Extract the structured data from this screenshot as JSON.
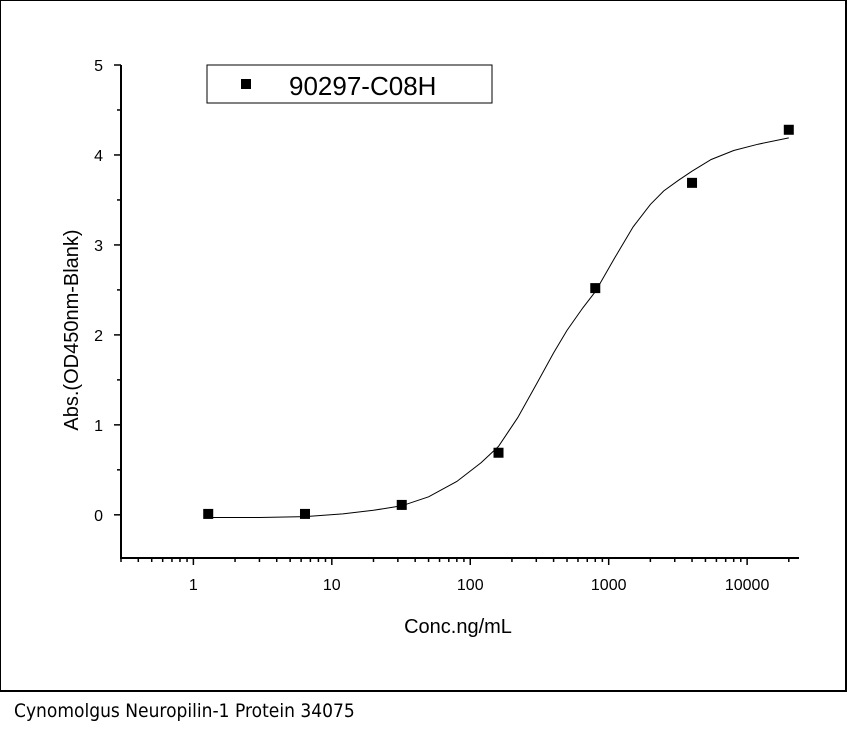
{
  "caption": "Cynomolgus Neuropilin-1 Protein 34075",
  "chart_data": {
    "type": "scatter",
    "title": "",
    "xlabel": "Conc.ng/mL",
    "ylabel": "Abs.(OD450nm-Blank)",
    "x_scale": "log",
    "xlim": [
      0.3,
      23700
    ],
    "ylim": [
      -0.48,
      5
    ],
    "x_ticks": [
      1,
      10,
      100,
      1000,
      10000
    ],
    "x_tick_labels": [
      "1",
      "10",
      "100",
      "1000",
      "10000"
    ],
    "y_ticks": [
      0,
      1,
      2,
      3,
      4,
      5
    ],
    "y_tick_labels": [
      "0",
      "1",
      "2",
      "3",
      "4",
      "5"
    ],
    "grid": false,
    "legend_position": "top-left",
    "series": [
      {
        "name": "90297-C08H",
        "marker": "square",
        "color": "#000000",
        "x": [
          1.28,
          6.4,
          32,
          160,
          800,
          4000,
          20000
        ],
        "y": [
          0.01,
          0.01,
          0.11,
          0.69,
          2.52,
          3.69,
          4.28
        ]
      }
    ],
    "fit_curve": {
      "color": "#000000",
      "x": [
        1.28,
        3,
        6.4,
        12,
        20,
        32,
        50,
        80,
        120,
        160,
        220,
        300,
        400,
        500,
        650,
        800,
        1100,
        1500,
        2000,
        2500,
        3200,
        4000,
        5500,
        8000,
        12000,
        20000
      ],
      "y": [
        -0.03,
        -0.03,
        -0.02,
        0.01,
        0.05,
        0.1,
        0.2,
        0.37,
        0.58,
        0.76,
        1.08,
        1.45,
        1.8,
        2.05,
        2.3,
        2.48,
        2.85,
        3.2,
        3.45,
        3.6,
        3.72,
        3.82,
        3.95,
        4.05,
        4.12,
        4.19
      ]
    }
  }
}
